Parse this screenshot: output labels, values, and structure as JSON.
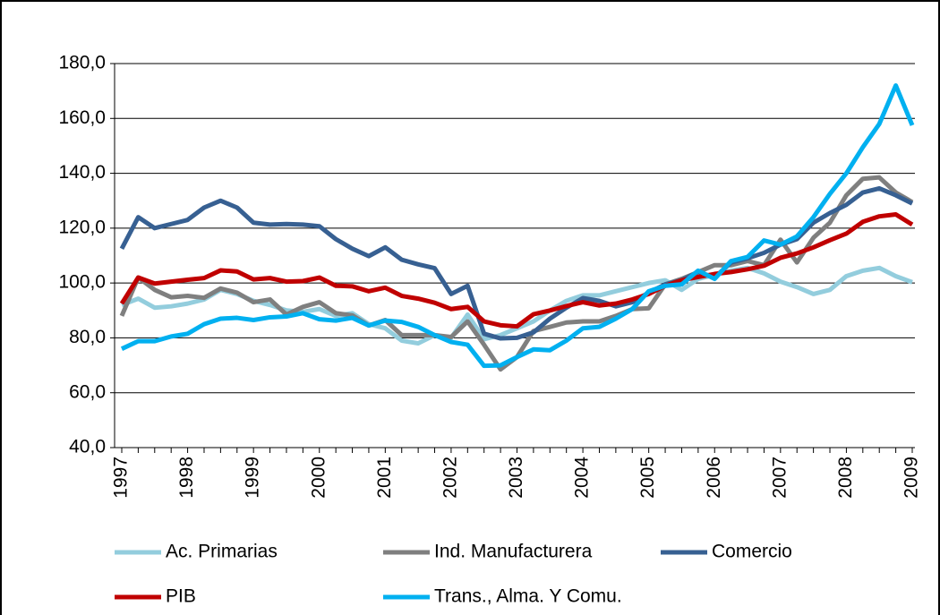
{
  "chart_data": {
    "type": "line",
    "categories": [
      "1997",
      null,
      null,
      null,
      "1998",
      null,
      null,
      null,
      "1999",
      null,
      null,
      null,
      "2000",
      null,
      null,
      null,
      "2001",
      null,
      null,
      null,
      "2002",
      null,
      null,
      null,
      "2003",
      null,
      null,
      null,
      "2004",
      null,
      null,
      null,
      "2005",
      null,
      null,
      null,
      "2006",
      null,
      null,
      null,
      "2007",
      null,
      null,
      null,
      "2008",
      null,
      null,
      null,
      "2009"
    ],
    "ylim": [
      40,
      180
    ],
    "yticks": [
      {
        "value": 40,
        "label": "40,0"
      },
      {
        "value": 60,
        "label": "60,0"
      },
      {
        "value": 80,
        "label": "80,0"
      },
      {
        "value": 100,
        "label": "100,0"
      },
      {
        "value": 120,
        "label": "120,0"
      },
      {
        "value": 140,
        "label": "140,0"
      },
      {
        "value": 160,
        "label": "160,0"
      },
      {
        "value": 180,
        "label": "180,0"
      }
    ],
    "grid": true,
    "series": [
      {
        "name": "Ac. Primarias",
        "color": "#93cddd",
        "values": [
          92,
          94.3,
          91,
          91.5,
          92.5,
          94,
          97.5,
          96,
          93.5,
          92,
          90,
          89.5,
          90.5,
          88,
          89,
          85,
          83.5,
          79,
          78,
          81,
          80,
          88.5,
          79.5,
          81,
          83.5,
          86,
          90,
          93.5,
          95.5,
          95.5,
          97,
          98.5,
          100,
          101,
          97.5,
          101.5,
          103,
          104.5,
          105.5,
          103.5,
          100.5,
          98.5,
          96,
          97.5,
          102.5,
          104.5,
          105.5,
          102.5,
          100.3
        ]
      },
      {
        "name": "Ind. Manufacturera",
        "color": "#7f7f7f",
        "values": [
          88,
          102,
          97.5,
          94.8,
          95.3,
          94.6,
          98,
          96.5,
          93,
          94,
          88.5,
          91.3,
          93,
          89,
          88.2,
          84.5,
          86.5,
          81,
          81,
          81,
          80.3,
          86,
          77.5,
          68.5,
          73,
          82.5,
          84,
          85.6,
          86,
          86,
          88,
          90.5,
          90.8,
          99.5,
          101.5,
          104,
          106.5,
          106.5,
          108,
          106.5,
          115.8,
          107.5,
          116.5,
          122,
          132,
          138,
          138.5,
          133,
          129.5
        ]
      },
      {
        "name": "Comercio",
        "color": "#376092",
        "values": [
          112.5,
          124,
          120,
          121.5,
          123,
          127.5,
          130,
          127.5,
          122,
          121.3,
          121.5,
          121.3,
          120.7,
          116,
          112.5,
          109.8,
          113,
          108.5,
          106.8,
          105.4,
          96,
          99,
          81.5,
          79.8,
          80,
          82,
          87,
          91,
          94.5,
          93.5,
          91.5,
          93,
          96.5,
          99.5,
          101,
          104,
          102,
          107.5,
          109,
          111,
          114,
          116,
          122,
          125.5,
          128.5,
          133,
          134.5,
          132,
          129
        ]
      },
      {
        "name": "PIB",
        "color": "#c00000",
        "values": [
          92.5,
          102,
          99.8,
          100.5,
          101.2,
          101.8,
          104.6,
          104.2,
          101.3,
          101.8,
          100.5,
          100.7,
          102,
          99,
          98.8,
          97,
          98.3,
          95.3,
          94.3,
          92.8,
          90.5,
          91.3,
          86,
          84.6,
          84.2,
          88.6,
          90,
          91.6,
          93,
          91.8,
          92.5,
          94,
          96,
          99,
          101,
          102.2,
          103.3,
          104,
          105,
          106.3,
          109.2,
          110.8,
          113,
          115.6,
          118,
          122.3,
          124.3,
          125,
          121.3
        ]
      },
      {
        "name": "Trans., Alma. Y Comu.",
        "color": "#00b0f0",
        "values": [
          76,
          78.8,
          78.8,
          80.5,
          81.5,
          85,
          87,
          87.3,
          86.5,
          87.5,
          87.8,
          89,
          86.8,
          86.3,
          87.3,
          84.5,
          86.3,
          85.8,
          84,
          81,
          78.5,
          77.5,
          69.8,
          70,
          73,
          75.8,
          75.5,
          79,
          83.5,
          84,
          87,
          90.5,
          97,
          99,
          99.5,
          104.5,
          101.5,
          108,
          109.5,
          115.5,
          114,
          117,
          124,
          132.5,
          140,
          149.5,
          158,
          172,
          157.5
        ]
      }
    ]
  }
}
